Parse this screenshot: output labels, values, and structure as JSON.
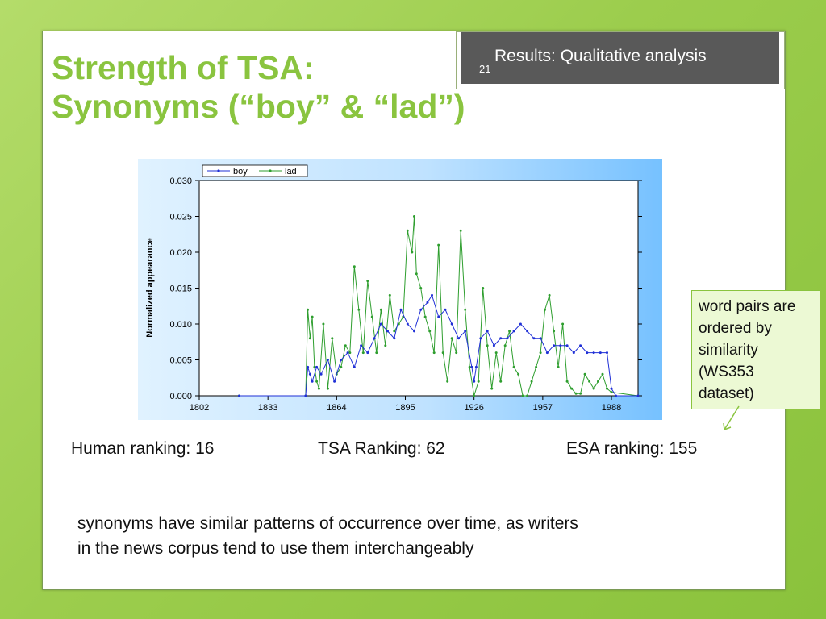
{
  "header": {
    "slide_number": "21",
    "section": "Results: Qualitative analysis"
  },
  "title": {
    "line1": "Strength of TSA:",
    "line2": "Synonyms (“boy” & “lad”)"
  },
  "colors": {
    "accent": "#8ac43f",
    "boy": "#1f2fd6",
    "lad": "#2e9e2e",
    "chart_bg": "#76c1ff"
  },
  "rankings": {
    "human": "Human ranking: 16",
    "tsa": "TSA Ranking: 62",
    "esa": "ESA ranking: 155"
  },
  "callout": {
    "text": "word pairs are ordered by similarity (WS353 dataset)"
  },
  "summary": {
    "line1": "synonyms have similar patterns of occurrence over time, as writers",
    "line2": "in the news corpus tend to use them interchangeably"
  },
  "chart_data": {
    "type": "line",
    "title": "",
    "xlabel": "",
    "ylabel": "Normalized appearance",
    "xlim": [
      1802,
      2000
    ],
    "ylim": [
      0,
      0.03
    ],
    "x_ticks": [
      "1802",
      "1833",
      "1864",
      "1895",
      "1926",
      "1957",
      "1988"
    ],
    "y_ticks": [
      "0.000",
      "0.005",
      "0.010",
      "0.015",
      "0.020",
      "0.025",
      "0.030"
    ],
    "grid": false,
    "legend": "top-left",
    "series": [
      {
        "name": "boy",
        "x": [
          1820,
          1850,
          1851,
          1852,
          1853,
          1855,
          1857,
          1860,
          1863,
          1866,
          1869,
          1872,
          1875,
          1878,
          1881,
          1884,
          1887,
          1890,
          1893,
          1896,
          1899,
          1902,
          1905,
          1907,
          1910,
          1913,
          1916,
          1919,
          1922,
          1925,
          1926,
          1927,
          1929,
          1932,
          1935,
          1938,
          1941,
          1944,
          1947,
          1950,
          1953,
          1956,
          1959,
          1962,
          1965,
          1968,
          1971,
          1974,
          1977,
          1980,
          1983,
          1986,
          1988,
          1990,
          2000
        ],
        "y": [
          0,
          0,
          0.004,
          0.003,
          0.002,
          0.004,
          0.003,
          0.005,
          0.002,
          0.005,
          0.006,
          0.004,
          0.007,
          0.006,
          0.008,
          0.01,
          0.009,
          0.008,
          0.012,
          0.01,
          0.009,
          0.012,
          0.013,
          0.014,
          0.011,
          0.012,
          0.01,
          0.008,
          0.009,
          0.004,
          0.002,
          0.004,
          0.008,
          0.009,
          0.007,
          0.008,
          0.008,
          0.009,
          0.01,
          0.009,
          0.008,
          0.008,
          0.006,
          0.007,
          0.007,
          0.007,
          0.006,
          0.007,
          0.006,
          0.006,
          0.006,
          0.006,
          0.001,
          0,
          0
        ]
      },
      {
        "name": "lad",
        "x": [
          1820,
          1850,
          1851,
          1852,
          1853,
          1854,
          1855,
          1856,
          1858,
          1860,
          1862,
          1864,
          1866,
          1868,
          1870,
          1872,
          1874,
          1876,
          1878,
          1880,
          1882,
          1884,
          1886,
          1888,
          1890,
          1892,
          1894,
          1896,
          1898,
          1899,
          1900,
          1902,
          1904,
          1906,
          1908,
          1910,
          1912,
          1914,
          1916,
          1918,
          1920,
          1922,
          1924,
          1926,
          1928,
          1930,
          1932,
          1934,
          1936,
          1938,
          1940,
          1942,
          1944,
          1946,
          1948,
          1950,
          1952,
          1954,
          1956,
          1958,
          1960,
          1962,
          1964,
          1966,
          1968,
          1970,
          1972,
          1974,
          1976,
          1978,
          1980,
          1982,
          1984,
          1986,
          1988,
          2000
        ],
        "y": [
          0,
          0,
          0.012,
          0.008,
          0.011,
          0.004,
          0.002,
          0.001,
          0.01,
          0.001,
          0.008,
          0.003,
          0.004,
          0.007,
          0.006,
          0.018,
          0.012,
          0.006,
          0.016,
          0.011,
          0.006,
          0.012,
          0.007,
          0.014,
          0.009,
          0.01,
          0.011,
          0.023,
          0.02,
          0.025,
          0.017,
          0.015,
          0.011,
          0.009,
          0.006,
          0.021,
          0.006,
          0.002,
          0.008,
          0.006,
          0.023,
          0.012,
          0.004,
          0,
          0.002,
          0.015,
          0.007,
          0.001,
          0.006,
          0.002,
          0.007,
          0.009,
          0.004,
          0.003,
          0,
          0,
          0.002,
          0.004,
          0.006,
          0.012,
          0.014,
          0.009,
          0.004,
          0.01,
          0.002,
          0.001,
          0.0003,
          0.0003,
          0.003,
          0.002,
          0.001,
          0.002,
          0.003,
          0.001,
          0.0005,
          0
        ]
      }
    ]
  }
}
